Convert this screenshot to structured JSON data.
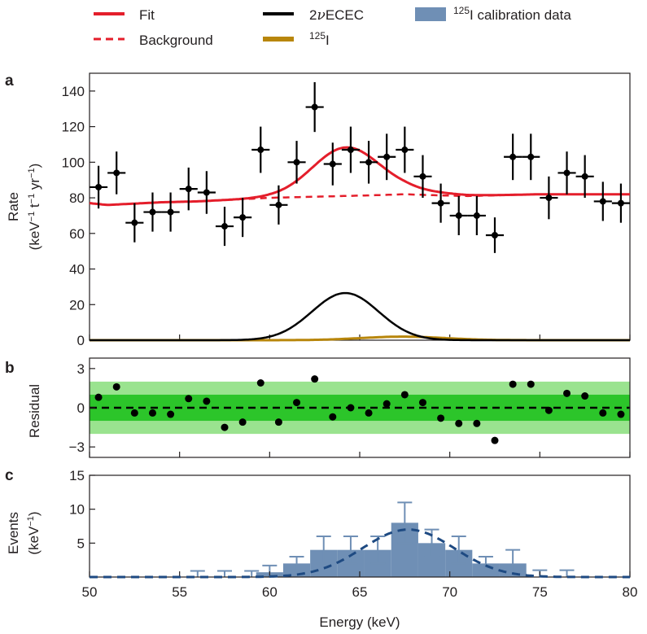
{
  "legend": {
    "fit": "Fit",
    "background": "Background",
    "ecec_prefix": "2",
    "ecec_nu": "ν",
    "ecec_suffix": "ECEC",
    "i125_sup": "125",
    "i125_label": "I",
    "calib_sup": "125",
    "calib_label": "I calibration data"
  },
  "colors": {
    "fit": "#e41e2b",
    "background": "#e41e2b",
    "ecec": "#000000",
    "i125": "#b8860b",
    "calib": "#6f8fb5",
    "calib_dark": "#1e4a82",
    "band_outer": "#9ae38f",
    "band_inner": "#2cc52a"
  },
  "chart_data": [
    {
      "panel": "a",
      "type": "scatter",
      "ylabel_line1": "Rate",
      "ylabel_line2_parts": [
        "(keV",
        "−1",
        " t",
        "−1",
        " yr",
        "−1",
        ")"
      ],
      "xlim": [
        50,
        80
      ],
      "ylim": [
        0,
        150
      ],
      "yticks": [
        0,
        20,
        40,
        60,
        80,
        100,
        120,
        140
      ],
      "x_half_width": 0.5,
      "points": [
        {
          "x": 50.5,
          "y": 86,
          "err": 12
        },
        {
          "x": 51.5,
          "y": 94,
          "err": 12
        },
        {
          "x": 52.5,
          "y": 66,
          "err": 11
        },
        {
          "x": 53.5,
          "y": 72,
          "err": 11
        },
        {
          "x": 54.5,
          "y": 72,
          "err": 11
        },
        {
          "x": 55.5,
          "y": 85,
          "err": 12
        },
        {
          "x": 56.5,
          "y": 83,
          "err": 12
        },
        {
          "x": 57.5,
          "y": 64,
          "err": 11
        },
        {
          "x": 58.5,
          "y": 69,
          "err": 11
        },
        {
          "x": 59.5,
          "y": 107,
          "err": 13
        },
        {
          "x": 60.5,
          "y": 76,
          "err": 11
        },
        {
          "x": 61.5,
          "y": 100,
          "err": 12
        },
        {
          "x": 62.5,
          "y": 131,
          "err": 14
        },
        {
          "x": 63.5,
          "y": 99,
          "err": 12
        },
        {
          "x": 64.5,
          "y": 107,
          "err": 13
        },
        {
          "x": 65.5,
          "y": 100,
          "err": 12
        },
        {
          "x": 66.5,
          "y": 103,
          "err": 13
        },
        {
          "x": 67.5,
          "y": 107,
          "err": 13
        },
        {
          "x": 68.5,
          "y": 92,
          "err": 12
        },
        {
          "x": 69.5,
          "y": 77,
          "err": 11
        },
        {
          "x": 70.5,
          "y": 70,
          "err": 11
        },
        {
          "x": 71.5,
          "y": 70,
          "err": 11
        },
        {
          "x": 72.5,
          "y": 59,
          "err": 10
        },
        {
          "x": 73.5,
          "y": 103,
          "err": 13
        },
        {
          "x": 74.5,
          "y": 103,
          "err": 13
        },
        {
          "x": 75.5,
          "y": 80,
          "err": 12
        },
        {
          "x": 76.5,
          "y": 94,
          "err": 12
        },
        {
          "x": 77.5,
          "y": 92,
          "err": 12
        },
        {
          "x": 78.5,
          "y": 78,
          "err": 11
        },
        {
          "x": 79.5,
          "y": 77,
          "err": 11
        }
      ],
      "background_curve": {
        "x": [
          50,
          51,
          52,
          54,
          56,
          58,
          60,
          62,
          64,
          66,
          67.5,
          69,
          71,
          73,
          75,
          78,
          80
        ],
        "y": [
          77,
          76,
          76.5,
          77.5,
          78,
          79,
          80,
          80.5,
          81,
          81.5,
          82,
          81.5,
          81,
          81.5,
          82,
          82,
          82
        ]
      },
      "ecec_peak": {
        "mean": 64.2,
        "sigma": 1.85,
        "amplitude": 26.5
      },
      "i125_peak": {
        "mean": 67.4,
        "sigma": 2.3,
        "amplitude": 2.0
      }
    },
    {
      "panel": "b",
      "type": "scatter",
      "ylabel": "Residual",
      "xlim": [
        50,
        80
      ],
      "ylim": [
        -3.8,
        3.8
      ],
      "yticks": [
        -3,
        0,
        3
      ],
      "yticklabels": [
        "−3",
        "0",
        "3"
      ],
      "band_inner": [
        -1,
        1
      ],
      "band_outer": [
        -2,
        2
      ],
      "points": [
        {
          "x": 50.5,
          "y": 0.8
        },
        {
          "x": 51.5,
          "y": 1.6
        },
        {
          "x": 52.5,
          "y": -0.4
        },
        {
          "x": 53.5,
          "y": -0.4
        },
        {
          "x": 54.5,
          "y": -0.5
        },
        {
          "x": 55.5,
          "y": 0.7
        },
        {
          "x": 56.5,
          "y": 0.5
        },
        {
          "x": 57.5,
          "y": -1.5
        },
        {
          "x": 58.5,
          "y": -1.1
        },
        {
          "x": 59.5,
          "y": 1.9
        },
        {
          "x": 60.5,
          "y": -1.1
        },
        {
          "x": 61.5,
          "y": 0.4
        },
        {
          "x": 62.5,
          "y": 2.2
        },
        {
          "x": 63.5,
          "y": -0.7
        },
        {
          "x": 64.5,
          "y": 0.0
        },
        {
          "x": 65.5,
          "y": -0.4
        },
        {
          "x": 66.5,
          "y": 0.3
        },
        {
          "x": 67.5,
          "y": 1.0
        },
        {
          "x": 68.5,
          "y": 0.4
        },
        {
          "x": 69.5,
          "y": -0.8
        },
        {
          "x": 70.5,
          "y": -1.2
        },
        {
          "x": 71.5,
          "y": -1.2
        },
        {
          "x": 72.5,
          "y": -2.5
        },
        {
          "x": 73.5,
          "y": 1.8
        },
        {
          "x": 74.5,
          "y": 1.8
        },
        {
          "x": 75.5,
          "y": -0.2
        },
        {
          "x": 76.5,
          "y": 1.1
        },
        {
          "x": 77.5,
          "y": 0.9
        },
        {
          "x": 78.5,
          "y": -0.4
        },
        {
          "x": 79.5,
          "y": -0.5
        }
      ]
    },
    {
      "panel": "c",
      "type": "bar",
      "ylabel_line1": "Events",
      "ylabel_line2_parts": [
        "(keV",
        "−1",
        ")"
      ],
      "xlabel": "Energy (keV)",
      "xlim": [
        50,
        80
      ],
      "ylim": [
        0,
        15
      ],
      "yticks": [
        5,
        10,
        15
      ],
      "xticks": [
        50,
        55,
        60,
        65,
        70,
        75,
        80
      ],
      "bin_width": 1.5,
      "bins": [
        {
          "center": 56.0,
          "value": 0.0,
          "err": 0.9
        },
        {
          "center": 57.5,
          "value": 0.0,
          "err": 0.9
        },
        {
          "center": 59.0,
          "value": 0.0,
          "err": 0.9
        },
        {
          "center": 60.0,
          "value": 0.7,
          "err": 1.0
        },
        {
          "center": 61.5,
          "value": 2.0,
          "err": 1.0
        },
        {
          "center": 63.0,
          "value": 4.0,
          "err": 2.0
        },
        {
          "center": 64.5,
          "value": 4.0,
          "err": 2.0
        },
        {
          "center": 66.0,
          "value": 4.0,
          "err": 2.0
        },
        {
          "center": 67.5,
          "value": 8.0,
          "err": 3.0
        },
        {
          "center": 69.0,
          "value": 5.0,
          "err": 2.0
        },
        {
          "center": 70.5,
          "value": 4.0,
          "err": 2.0
        },
        {
          "center": 72.0,
          "value": 2.0,
          "err": 1.0
        },
        {
          "center": 73.5,
          "value": 2.0,
          "err": 2.0
        },
        {
          "center": 75.0,
          "value": 0.0,
          "err": 1.0
        },
        {
          "center": 76.5,
          "value": 0.0,
          "err": 1.0
        }
      ],
      "fit_peak": {
        "mean": 67.7,
        "sigma": 2.55,
        "amplitude": 7.0
      }
    }
  ]
}
